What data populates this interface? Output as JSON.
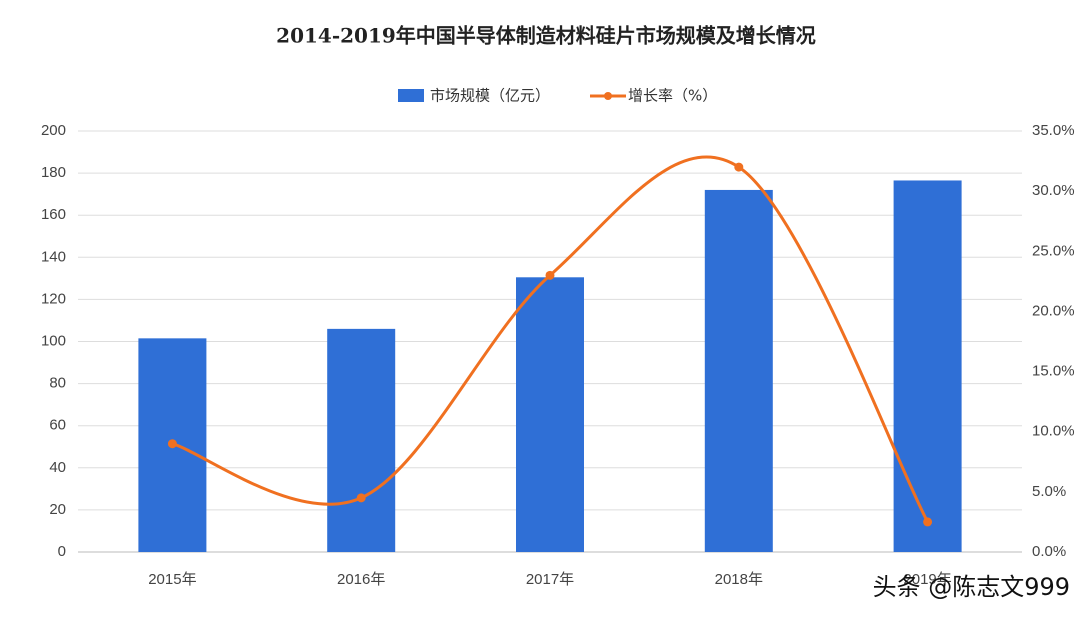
{
  "chart_data": {
    "type": "bar_line",
    "title": "2014-2019年中国半导体制造材料硅片市场规模及增长情况",
    "categories": [
      "2015年",
      "2016年",
      "2017年",
      "2018年",
      "2019年"
    ],
    "series": [
      {
        "name": "市场规模（亿元）",
        "type": "bar",
        "color": "#2f6fd6",
        "values": [
          101.5,
          106,
          130.5,
          172,
          176.5
        ]
      },
      {
        "name": "增长率（%）",
        "type": "line",
        "axis": "y2",
        "color": "#f07020",
        "values": [
          9.0,
          4.5,
          23.0,
          32.0,
          2.5
        ]
      }
    ],
    "ylim": [
      0,
      200
    ],
    "yticks": [
      0,
      20,
      40,
      60,
      80,
      100,
      120,
      140,
      160,
      180,
      200
    ],
    "y2lim": [
      0,
      35
    ],
    "y2ticks": [
      {
        "value": 0,
        "label": "0.0%"
      },
      {
        "value": 5,
        "label": "5.0%"
      },
      {
        "value": 10,
        "label": "10.0%"
      },
      {
        "value": 15,
        "label": "15.0%"
      },
      {
        "value": 20,
        "label": "20.0%"
      },
      {
        "value": 25,
        "label": "25.0%"
      },
      {
        "value": 30,
        "label": "30.0%"
      },
      {
        "value": 35,
        "label": "35.0%"
      }
    ],
    "grid": true,
    "legend": "top",
    "watermark": "头条 @陈志文999"
  }
}
